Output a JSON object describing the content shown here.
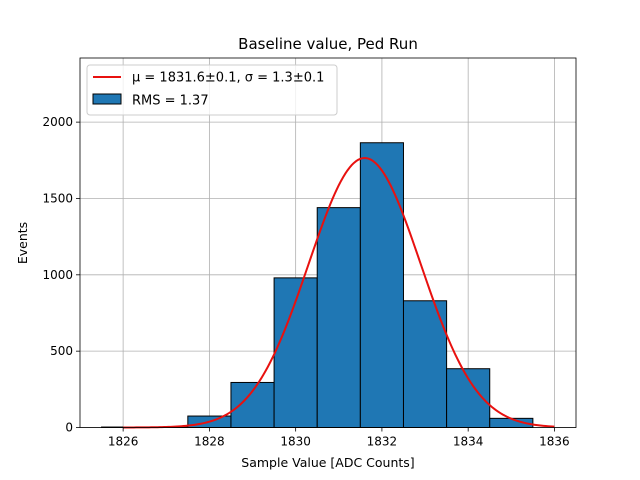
{
  "chart_data": {
    "type": "bar",
    "title": "Baseline value, Ped Run",
    "xlabel": "Sample Value [ADC Counts]",
    "ylabel": "Events",
    "xlim": [
      1825,
      1836.5
    ],
    "ylim": [
      0,
      2420
    ],
    "xticks": [
      1826,
      1828,
      1830,
      1832,
      1834,
      1836
    ],
    "yticks": [
      0,
      500,
      1000,
      1500,
      2000
    ],
    "grid": true,
    "legend_position": "top-left",
    "histogram": {
      "name": "RMS = 1.37",
      "color": "#1f77b4",
      "edge_color": "#000000",
      "bins": [
        {
          "x0": 1825.5,
          "x1": 1826.5,
          "value": 3
        },
        {
          "x0": 1826.5,
          "x1": 1827.5,
          "value": 3
        },
        {
          "x0": 1827.5,
          "x1": 1828.5,
          "value": 75
        },
        {
          "x0": 1828.5,
          "x1": 1829.5,
          "value": 295
        },
        {
          "x0": 1829.5,
          "x1": 1830.5,
          "value": 980
        },
        {
          "x0": 1830.5,
          "x1": 1831.5,
          "value": 1440
        },
        {
          "x0": 1831.5,
          "x1": 1832.5,
          "value": 1865
        },
        {
          "x0": 1832.5,
          "x1": 1833.5,
          "value": 830
        },
        {
          "x0": 1833.5,
          "x1": 1834.5,
          "value": 385
        },
        {
          "x0": 1834.5,
          "x1": 1835.5,
          "value": 60
        }
      ]
    },
    "fit": {
      "type": "gaussian",
      "name": "μ = 1831.6±0.1, σ = 1.3±0.1",
      "color": "#e8110f",
      "mu": 1831.6,
      "sigma": 1.3,
      "amplitude": 1765,
      "x_range": [
        1826,
        1836
      ]
    }
  }
}
